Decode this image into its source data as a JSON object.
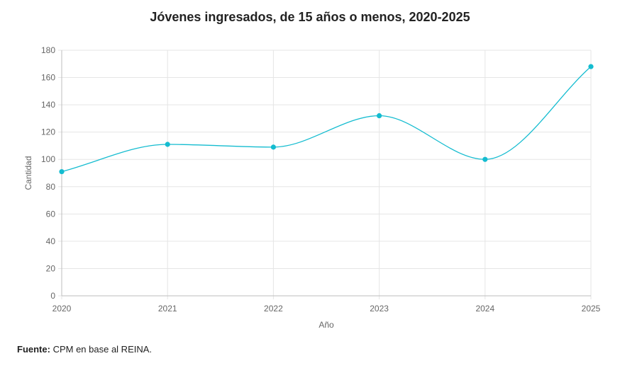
{
  "chart_data": {
    "type": "line",
    "title": "Jóvenes ingresados, de 15 años o menos, 2020-2025",
    "xlabel": "Año",
    "ylabel": "Cantidad",
    "x": [
      "2020",
      "2021",
      "2022",
      "2023",
      "2024",
      "2025"
    ],
    "series": [
      {
        "values": [
          91,
          111,
          109,
          132,
          100,
          168
        ],
        "color": "#14bcd0"
      }
    ],
    "ylim": [
      0,
      180
    ],
    "yticks": [
      0,
      20,
      40,
      60,
      80,
      100,
      120,
      140,
      160,
      180
    ],
    "grid": true,
    "smooth": true
  },
  "source": {
    "label": "Fuente:",
    "text": "CPM en base al REINA."
  }
}
